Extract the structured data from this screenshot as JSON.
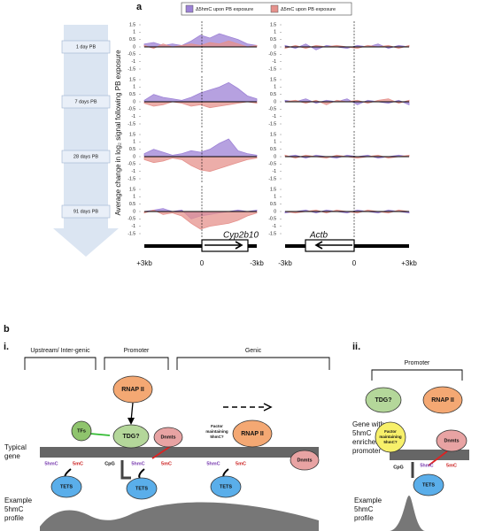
{
  "panel_a": {
    "label": "a",
    "y_axis_label": "Average change in log₂ signal following PB exposure",
    "timepoints": [
      "1 day PB",
      "7 days PB",
      "28 days PB",
      "91 days PB"
    ],
    "genes": [
      "Cyp2b10",
      "Actb"
    ],
    "x_labels_left": [
      "+3kb",
      "0",
      "-3kb"
    ],
    "x_labels_right": [
      "-3kb",
      "0",
      "+3kb"
    ]
  },
  "chart_data": [
    {
      "type": "area",
      "ylim": [
        -1.5,
        1.5
      ],
      "yticks": [
        -1.5,
        -1,
        -0.5,
        0,
        0.5,
        1,
        1.5
      ],
      "series": [
        {
          "name": "Δ5hmC upon PB exposure",
          "color": "#9d82d6",
          "values": [
            0.2,
            0.3,
            0.1,
            0.2,
            0.1,
            0.4,
            0.8,
            0.6,
            0.9,
            0.7,
            0.5,
            0.2,
            0.1
          ]
        },
        {
          "name": "Δ5mC upon PB exposure",
          "color": "#e5918c",
          "values": [
            0.1,
            -0.1,
            0.2,
            0,
            0.1,
            0.2,
            0.1,
            0.3,
            0.2,
            0.4,
            0.2,
            0,
            0.1
          ]
        }
      ]
    },
    {
      "type": "area",
      "ylim": [
        -1.5,
        1.5
      ],
      "yticks": [
        -1.5,
        -1,
        -0.5,
        0,
        0.5,
        1,
        1.5
      ],
      "series": [
        {
          "name": "Δ5hmC upon PB exposure",
          "color": "#9d82d6",
          "values": [
            0.1,
            0.5,
            0.3,
            0.2,
            0.1,
            0.3,
            0.6,
            0.8,
            1,
            1.3,
            0.9,
            0.4,
            0.2
          ]
        },
        {
          "name": "Δ5mC upon PB exposure",
          "color": "#e5918c",
          "values": [
            -0.1,
            -0.3,
            -0.2,
            0,
            -0.1,
            -0.3,
            -0.2,
            -0.4,
            -0.3,
            -0.2,
            -0.1,
            0,
            -0.1
          ]
        }
      ]
    },
    {
      "type": "area",
      "ylim": [
        -1.5,
        1.5
      ],
      "yticks": [
        -1.5,
        -1,
        -0.5,
        0,
        0.5,
        1,
        1.5
      ],
      "series": [
        {
          "name": "Δ5hmC upon PB exposure",
          "color": "#9d82d6",
          "values": [
            0.2,
            0.5,
            0.3,
            0.1,
            0.2,
            0.4,
            0.3,
            0.5,
            0.9,
            1.2,
            0.4,
            0.2,
            0.1
          ]
        },
        {
          "name": "Δ5mC upon PB exposure",
          "color": "#e5918c",
          "values": [
            -0.2,
            -0.4,
            -0.3,
            -0.1,
            -0.2,
            -0.6,
            -0.9,
            -1,
            -0.8,
            -0.6,
            -0.4,
            -0.2,
            -0.1
          ]
        }
      ]
    },
    {
      "type": "area",
      "ylim": [
        -1.5,
        1.5
      ],
      "yticks": [
        -1.5,
        -1,
        -0.5,
        0,
        0.5,
        1,
        1.5
      ],
      "series": [
        {
          "name": "Δ5hmC upon PB exposure",
          "color": "#9d82d6",
          "values": [
            0,
            0.1,
            0.2,
            0,
            0.1,
            -0.5,
            -0.3,
            -0.2,
            -0.1,
            0,
            0.1,
            0,
            0.1
          ]
        },
        {
          "name": "Δ5mC upon PB exposure",
          "color": "#e5918c",
          "values": [
            -0.1,
            0.1,
            -0.2,
            -0.1,
            -0.3,
            -0.8,
            -1.2,
            -1,
            -0.9,
            -0.8,
            -0.6,
            -0.3,
            -0.1
          ]
        }
      ]
    },
    {
      "type": "area",
      "ylim": [
        -1.5,
        1.5
      ],
      "yticks": [
        -1.5,
        -1,
        -0.5,
        0,
        0.5,
        1,
        1.5
      ],
      "series": [
        {
          "name": "Δ5hmC upon PB exposure",
          "color": "#9d82d6",
          "values": [
            0.1,
            -0.1,
            0.2,
            -0.2,
            0.1,
            0,
            -0.1,
            0.1,
            0,
            0.2,
            -0.1,
            0.1,
            0
          ]
        },
        {
          "name": "Δ5mC upon PB exposure",
          "color": "#e5918c",
          "values": [
            -0.1,
            0.1,
            -0.1,
            0.1,
            0,
            0.1,
            0,
            -0.1,
            0.1,
            0,
            0.1,
            -0.1,
            0.1
          ]
        }
      ]
    },
    {
      "type": "area",
      "ylim": [
        -1.5,
        1.5
      ],
      "yticks": [
        -1.5,
        -1,
        -0.5,
        0,
        0.5,
        1,
        1.5
      ],
      "series": [
        {
          "name": "Δ5hmC upon PB exposure",
          "color": "#9d82d6",
          "values": [
            0.1,
            0,
            0.2,
            -0.1,
            0.1,
            0,
            0.2,
            -0.2,
            0.1,
            0,
            -0.1,
            0.1,
            -0.2
          ]
        },
        {
          "name": "Δ5mC upon PB exposure",
          "color": "#e5918c",
          "values": [
            0,
            0.1,
            -0.1,
            0.1,
            -0.2,
            0.1,
            0,
            0.1,
            -0.1,
            0.1,
            0.2,
            -0.1,
            0.1
          ]
        }
      ]
    },
    {
      "type": "area",
      "ylim": [
        -1.5,
        1.5
      ],
      "yticks": [
        -1.5,
        -1,
        -0.5,
        0,
        0.5,
        1,
        1.5
      ],
      "series": [
        {
          "name": "Δ5hmC upon PB exposure",
          "color": "#9d82d6",
          "values": [
            0,
            0.1,
            -0.1,
            0.1,
            0,
            -0.1,
            0.1,
            0,
            0.1,
            -0.1,
            0,
            0.1,
            0
          ]
        },
        {
          "name": "Δ5mC upon PB exposure",
          "color": "#e5918c",
          "values": [
            0.1,
            -0.1,
            0.1,
            0,
            -0.1,
            0.1,
            0,
            -0.1,
            0,
            0.1,
            -0.1,
            0,
            0.1
          ]
        }
      ]
    },
    {
      "type": "area",
      "ylim": [
        -1.5,
        1.5
      ],
      "yticks": [
        -1.5,
        -1,
        -0.5,
        0,
        0.5,
        1,
        1.5
      ],
      "series": [
        {
          "name": "Δ5hmC upon PB exposure",
          "color": "#9d82d6",
          "values": [
            -0.1,
            0,
            0.1,
            -0.1,
            0.1,
            0,
            -0.1,
            0.1,
            0,
            -0.1,
            0.1,
            0,
            -0.1
          ]
        },
        {
          "name": "Δ5mC upon PB exposure",
          "color": "#e5918c",
          "values": [
            0,
            -0.1,
            0,
            0.1,
            -0.1,
            0.1,
            0,
            -0.1,
            0.1,
            0,
            -0.1,
            0.1,
            0
          ]
        }
      ]
    }
  ],
  "panel_b": {
    "label": "b",
    "i": {
      "label": "i.",
      "regions": [
        "Upstream/ Inter-genic",
        "Promoter",
        "Genic"
      ],
      "rnap": "RNAP II",
      "tfs": "TFs",
      "tdg": "TDG?",
      "dnmts": "Dnmts",
      "factor": [
        "Factor",
        "maintaining",
        "5hmC?"
      ],
      "rnap_genic": "RNAP II",
      "dnmts_genic": "Dnmts",
      "gene_label": [
        "Typical",
        "gene"
      ],
      "marks": [
        "5hmC",
        "5mC",
        "CpG",
        "5hmC",
        "5mC",
        "5hmC",
        "5mC"
      ],
      "tets": [
        "TETS",
        "TETS",
        "TETS"
      ],
      "profile_label": [
        "Example",
        "5hmC",
        "profile"
      ]
    },
    "ii": {
      "label": "ii.",
      "region": "Promoter",
      "tdg": "TDG?",
      "rnap": "RNAP II",
      "gene_label": [
        "Gene with",
        "5hmC",
        "enriched",
        "promoter"
      ],
      "factor": [
        "Factor",
        "maintaining",
        "5hmC?"
      ],
      "dnmts": "Dnmts",
      "marks": [
        "CpG",
        "5hmC",
        "5mC"
      ],
      "tets": "TETS",
      "profile_label": [
        "Example",
        "5hmC",
        "profile"
      ]
    }
  }
}
